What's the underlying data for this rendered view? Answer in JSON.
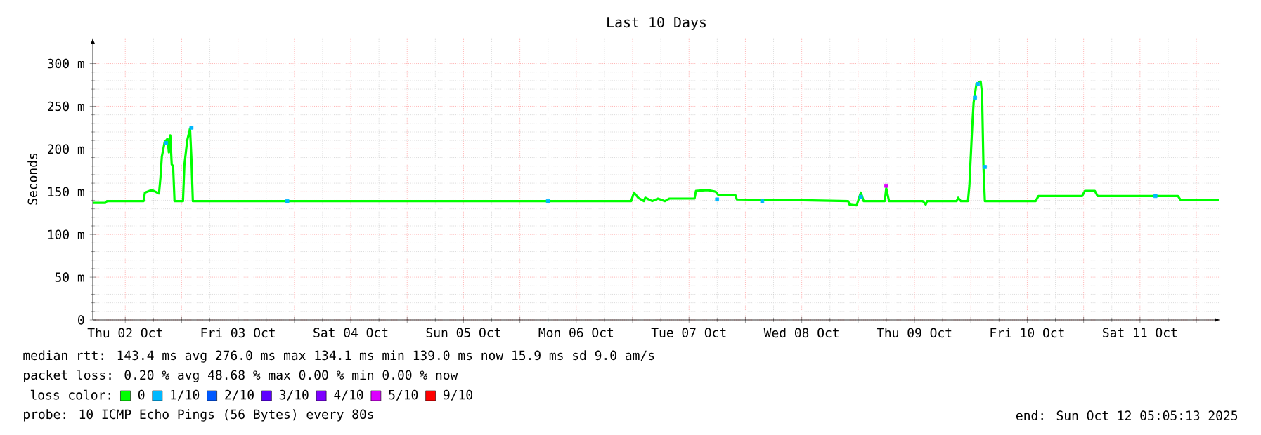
{
  "chart_data": {
    "type": "line",
    "title": "Last 10 Days",
    "ylabel": "Seconds",
    "legend_title": "loss color:",
    "xlim": [
      "2025-10-02T05:05",
      "2025-10-12T05:05"
    ],
    "xticks": [
      {
        "value": "2025-10-02T12:00",
        "label": "Thu 02 Oct"
      },
      {
        "value": "2025-10-03T00:00",
        "label": null
      },
      {
        "value": "2025-10-03T12:00",
        "label": "Fri 03 Oct"
      },
      {
        "value": "2025-10-04T00:00",
        "label": null
      },
      {
        "value": "2025-10-04T12:00",
        "label": "Sat 04 Oct"
      },
      {
        "value": "2025-10-05T00:00",
        "label": null
      },
      {
        "value": "2025-10-05T12:00",
        "label": "Sun 05 Oct"
      },
      {
        "value": "2025-10-06T00:00",
        "label": null
      },
      {
        "value": "2025-10-06T12:00",
        "label": "Mon 06 Oct"
      },
      {
        "value": "2025-10-07T00:00",
        "label": null
      },
      {
        "value": "2025-10-07T12:00",
        "label": "Tue 07 Oct"
      },
      {
        "value": "2025-10-08T00:00",
        "label": null
      },
      {
        "value": "2025-10-08T12:00",
        "label": "Wed 08 Oct"
      },
      {
        "value": "2025-10-09T00:00",
        "label": null
      },
      {
        "value": "2025-10-09T12:00",
        "label": "Thu 09 Oct"
      },
      {
        "value": "2025-10-10T00:00",
        "label": null
      },
      {
        "value": "2025-10-10T12:00",
        "label": "Fri 10 Oct"
      },
      {
        "value": "2025-10-11T00:00",
        "label": null
      },
      {
        "value": "2025-10-11T12:00",
        "label": "Sat 11 Oct"
      },
      {
        "value": "2025-10-12T00:00",
        "label": null
      }
    ],
    "ylim": [
      0,
      330
    ],
    "yticks": [
      0,
      {
        "value": 50,
        "label": "50 m"
      },
      {
        "value": 100,
        "label": "100 m"
      },
      {
        "value": 150,
        "label": "150 m"
      },
      {
        "value": 200,
        "label": "200 m"
      },
      {
        "value": 250,
        "label": "250 m"
      },
      {
        "value": 300,
        "label": "300 m"
      }
    ],
    "grid": true,
    "legend": "bottom",
    "series": [
      {
        "name": "0",
        "color": "#00ff00",
        "x": [
          "2025-10-02T05:05",
          "2025-10-02T07:47",
          "2025-10-02T08:05",
          "2025-10-02T15:53",
          "2025-10-02T16:11",
          "2025-10-02T17:41",
          "2025-10-02T19:11",
          "2025-10-02T19:29",
          "2025-10-02T19:47",
          "2025-10-02T20:23",
          "2025-10-02T20:59",
          "2025-10-02T21:17",
          "2025-10-02T21:35",
          "2025-10-02T21:53",
          "2025-10-02T22:11",
          "2025-10-02T22:29",
          "2025-10-03T00:17",
          "2025-10-03T00:35",
          "2025-10-03T01:11",
          "2025-10-03T01:47",
          "2025-10-03T02:05",
          "2025-10-03T02:23",
          "2025-10-06T23:41",
          "2025-10-07T00:17",
          "2025-10-07T01:11",
          "2025-10-07T02:23",
          "2025-10-07T02:41",
          "2025-10-07T04:11",
          "2025-10-07T05:23",
          "2025-10-07T06:53",
          "2025-10-07T07:47",
          "2025-10-07T13:11",
          "2025-10-07T13:29",
          "2025-10-07T15:53",
          "2025-10-07T17:41",
          "2025-10-07T18:17",
          "2025-10-07T21:53",
          "2025-10-07T22:11",
          "2025-10-08T12:17",
          "2025-10-08T21:53",
          "2025-10-08T22:11",
          "2025-10-08T23:41",
          "2025-10-09T00:35",
          "2025-10-09T01:11",
          "2025-10-09T05:41",
          "2025-10-09T05:59",
          "2025-10-09T06:35",
          "2025-10-09T13:47",
          "2025-10-09T14:23",
          "2025-10-09T14:41",
          "2025-10-09T20:59",
          "2025-10-09T21:17",
          "2025-10-09T21:53",
          "2025-10-09T23:23",
          "2025-10-09T23:41",
          "2025-10-10T00:17",
          "2025-10-10T00:35",
          "2025-10-10T01:11",
          "2025-10-10T02:05",
          "2025-10-10T02:23",
          "2025-10-10T02:41",
          "2025-10-10T02:59",
          "2025-10-10T13:47",
          "2025-10-10T14:23",
          "2025-10-10T23:41",
          "2025-10-11T00:17",
          "2025-10-11T02:23",
          "2025-10-11T02:59",
          "2025-10-11T20:05",
          "2025-10-11T20:41",
          "2025-10-12T04:47"
        ],
        "values": [
          137,
          137,
          139,
          139,
          149,
          152,
          148,
          166,
          191,
          208,
          212,
          196,
          216,
          182,
          180,
          139,
          139,
          181,
          210,
          224,
          189,
          139,
          139,
          149,
          143,
          139,
          143,
          139,
          142,
          139,
          142,
          142,
          151,
          152,
          150,
          146,
          146,
          141,
          140,
          139,
          135,
          134,
          149,
          139,
          139,
          154,
          139,
          139,
          135,
          139,
          139,
          143,
          139,
          139,
          157,
          226,
          254,
          276,
          279,
          265,
          179,
          139,
          139,
          145,
          145,
          151,
          151,
          145,
          145,
          140,
          140
        ]
      },
      {
        "name": "1/10",
        "color": "#00b8ff",
        "type": "scatter",
        "marker": "square",
        "x": [
          "2025-10-02T20:41",
          "2025-10-03T02:05",
          "2025-10-03T22:29",
          "2025-10-06T05:59",
          "2025-10-07T17:59",
          "2025-10-08T03:35",
          "2025-10-09T00:35",
          "2025-10-10T00:53",
          "2025-10-10T01:29",
          "2025-10-10T02:59",
          "2025-10-11T15:17"
        ],
        "values": [
          207,
          225,
          139,
          139,
          141,
          139,
          144,
          260,
          276,
          179,
          145
        ]
      },
      {
        "name": "2/10",
        "color": "#0059ff",
        "type": "scatter"
      },
      {
        "name": "3/10",
        "color": "#5e00ff",
        "type": "scatter"
      },
      {
        "name": "4/10",
        "color": "#7e00ff",
        "type": "scatter"
      },
      {
        "name": "5/10",
        "color": "#dd00ff",
        "type": "scatter",
        "marker": "square",
        "x": [
          "2025-10-09T05:59"
        ],
        "values": [
          157
        ]
      },
      {
        "name": "9/10",
        "color": "#ff0000",
        "type": "scatter"
      }
    ],
    "annotations": [
      "median rtt:  143.4 ms avg  276.0 ms max  134.1 ms min  139.0 ms now  15.9 ms sd  9.0   am/s",
      "packet loss: 0.20 % avg  48.68 % max  0.00 % min  0.00 % now",
      "probe:       10 ICMP Echo Pings (56 Bytes) every 80s",
      "end: Sun Oct 12 05:05:13 2025"
    ]
  }
}
